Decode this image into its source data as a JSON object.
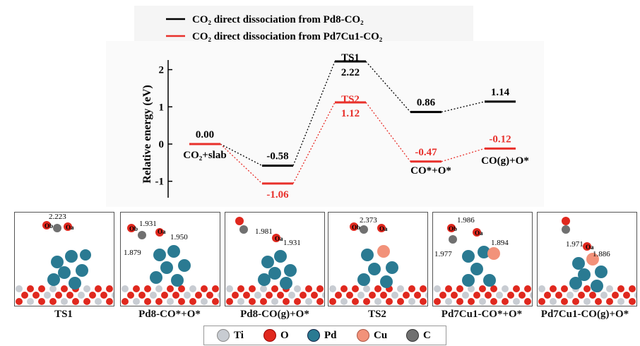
{
  "chart_data": {
    "type": "line",
    "ylabel": "Relative energy (eV)",
    "ylim": [
      -1.4,
      2.6
    ],
    "yticks": [
      "2",
      "1",
      "0",
      "-1"
    ],
    "legend_position": "top",
    "series": [
      {
        "name": "CO₂ direct dissociation from Pd8-CO₂",
        "color": "#000000",
        "values": [
          0.0,
          -0.58,
          2.22,
          0.86,
          1.14
        ],
        "value_labels": [
          "0.00",
          "-0.58",
          "2.22",
          "0.86",
          "1.14"
        ]
      },
      {
        "name": "CO₂ direct dissociation from Pd7Cu1-CO₂",
        "color": "#e8302b",
        "values": [
          0.0,
          -1.06,
          1.12,
          -0.47,
          -0.12
        ],
        "value_labels": [
          "",
          "-1.06",
          "1.12",
          "-0.47",
          "-0.12"
        ]
      }
    ],
    "state_labels": [
      {
        "text": "CO₂+slab",
        "state": 0
      },
      {
        "text": "TS1",
        "state": 2,
        "series": 0
      },
      {
        "text": "TS2",
        "state": 2,
        "series": 1
      },
      {
        "text": "CO*+O*",
        "state": 3
      },
      {
        "text": "CO(g)+O*",
        "state": 4
      }
    ]
  },
  "panels": [
    {
      "caption": "TS1",
      "labels": [
        "2.223",
        "Ob",
        "Oa"
      ]
    },
    {
      "caption": "Pd8-CO*+O*",
      "labels": [
        "1.931",
        "1.950",
        "1.879",
        "Ob",
        "Oa"
      ]
    },
    {
      "caption": "Pd8-CO(g)+O*",
      "labels": [
        "1.981",
        "1.931",
        "Oa"
      ]
    },
    {
      "caption": "TS2",
      "labels": [
        "2.373",
        "Ob",
        "Oa"
      ]
    },
    {
      "caption": "Pd7Cu1-CO*+O*",
      "labels": [
        "1.986",
        "1.894",
        "1.977",
        "Ob",
        "Oa"
      ]
    },
    {
      "caption": "Pd7Cu1-CO(g)+O*",
      "labels": [
        "1.971",
        "1.886",
        "Oa"
      ]
    }
  ],
  "atom_legend": [
    {
      "label": "Ti",
      "color": "#c8ccd2"
    },
    {
      "label": "O",
      "color": "#e0281e"
    },
    {
      "label": "Pd",
      "color": "#2a7a92"
    },
    {
      "label": "Cu",
      "color": "#f2927a"
    },
    {
      "label": "C",
      "color": "#707070"
    }
  ]
}
